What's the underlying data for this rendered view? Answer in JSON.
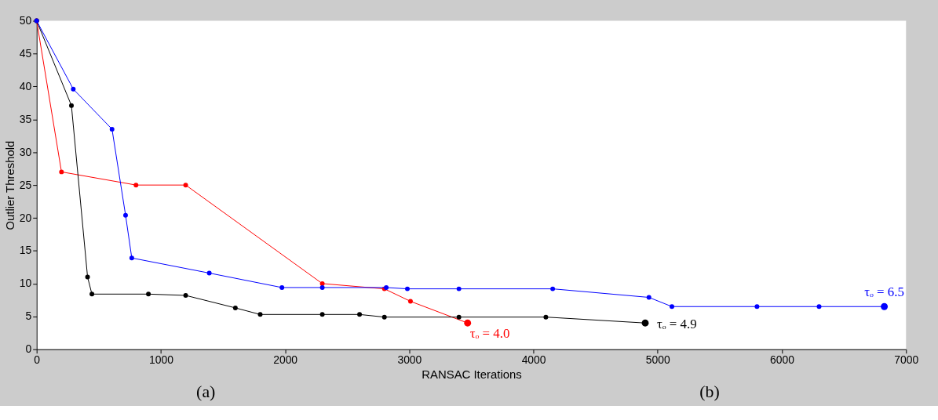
{
  "chart_data": {
    "type": "line",
    "xlabel": "RANSAC Iterations",
    "ylabel": "Outlier Threshold",
    "xlim": [
      0,
      7000
    ],
    "xticks": [
      0,
      1000,
      2000,
      3000,
      4000,
      5000,
      6000,
      7000
    ],
    "ylim": [
      0,
      50
    ],
    "yticks": [
      0,
      5,
      10,
      15,
      20,
      25,
      30,
      35,
      40,
      45,
      50
    ],
    "grid": false,
    "legend": false,
    "marker": "circle",
    "line_style": "solid",
    "series": [
      {
        "color": "#ff0000",
        "x": [
          0,
          200,
          800,
          1200,
          2300,
          2800,
          3010,
          3470
        ],
        "values": [
          50,
          27,
          25,
          25,
          10,
          9.2,
          7.3,
          4.0
        ]
      },
      {
        "color": "#000000",
        "x": [
          0,
          280,
          410,
          445,
          900,
          1200,
          1600,
          1800,
          2300,
          2600,
          2800,
          3400,
          4100,
          4900
        ],
        "values": [
          50,
          37.1,
          11.0,
          8.4,
          8.4,
          8.2,
          6.3,
          5.3,
          5.3,
          5.3,
          4.9,
          4.9,
          4.9,
          4.0
        ]
      },
      {
        "color": "#0000ff",
        "x": [
          0,
          295,
          607,
          716,
          766,
          1390,
          1975,
          2300,
          2815,
          2985,
          3400,
          4155,
          4930,
          5115,
          5800,
          6300,
          6825
        ],
        "values": [
          50,
          39.6,
          33.5,
          20.4,
          13.9,
          11.6,
          9.4,
          9.4,
          9.4,
          9.2,
          9.2,
          9.2,
          7.9,
          6.5,
          6.5,
          6.5,
          6.5
        ]
      }
    ],
    "annotations": [
      {
        "text": "τₒ = 4.0",
        "x": 3470,
        "y": 4.0
      },
      {
        "text": "τₒ = 4.9",
        "x": 4900,
        "y": 4.0
      },
      {
        "text": "τₒ = 6.5",
        "x": 6825,
        "y": 6.5
      },
      "(a)",
      "(b)"
    ]
  }
}
